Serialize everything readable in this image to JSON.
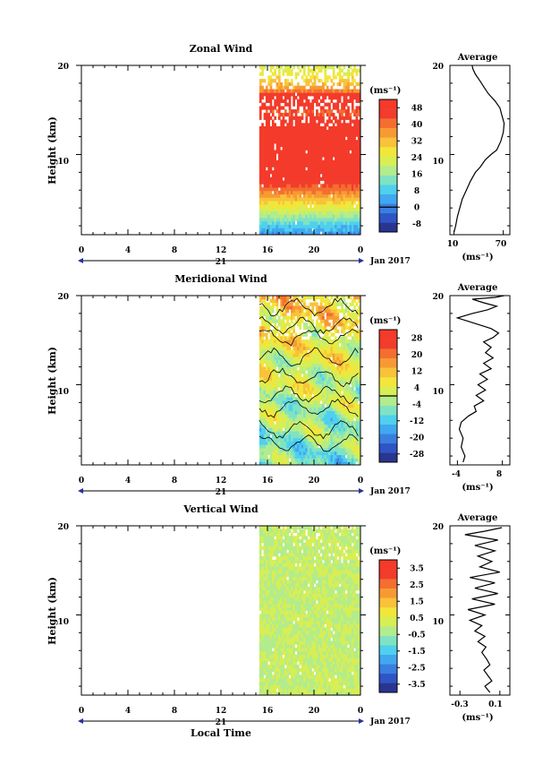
{
  "time_axis": {
    "hour_ticks": [
      "0",
      "4",
      "8",
      "12",
      "16",
      "20",
      "0"
    ],
    "day_label": "21",
    "month_label": "Jan 2017",
    "xlabel": "Local Time"
  },
  "chart_data": [
    {
      "type": "heatmap",
      "title": "Zonal Wind",
      "ylabel": "Height (km)",
      "ylim": [
        1,
        20
      ],
      "yticks": [
        "10",
        "20"
      ],
      "x_hour_range": [
        0,
        24
      ],
      "data_hour_range": [
        15.3,
        24
      ],
      "colorbar": {
        "unit": "(ms⁻¹)",
        "ticks": [
          "48",
          "40",
          "32",
          "24",
          "16",
          "8",
          "0",
          "-8"
        ],
        "range": [
          -12,
          52
        ],
        "colors": [
          "#2a3590",
          "#2f54c4",
          "#3a7ee0",
          "#41a8f0",
          "#4fd0ee",
          "#7fe3c2",
          "#b2ec8c",
          "#d7ee55",
          "#f2e63a",
          "#f8c23a",
          "#f79a34",
          "#f46e30",
          "#f23c2c",
          "#f43a2a"
        ],
        "contour_level": 0
      },
      "profile": {
        "title": "Average",
        "xticks": [
          "10",
          "70"
        ],
        "xlim": [
          5,
          78
        ],
        "xlabel": "(ms⁻¹)",
        "yticks": [
          "10",
          "20"
        ],
        "points": [
          [
            10,
            1.3
          ],
          [
            12,
            2.0
          ],
          [
            14,
            3.0
          ],
          [
            17,
            4.0
          ],
          [
            20,
            5.0
          ],
          [
            25,
            6.0
          ],
          [
            30,
            7.0
          ],
          [
            36,
            8.0
          ],
          [
            42,
            8.6
          ],
          [
            48,
            9.4
          ],
          [
            55,
            10.0
          ],
          [
            62,
            10.5
          ],
          [
            67,
            11.5
          ],
          [
            70,
            12.5
          ],
          [
            71,
            13.5
          ],
          [
            68,
            14.5
          ],
          [
            66,
            15.2
          ],
          [
            60,
            16.0
          ],
          [
            52,
            16.8
          ],
          [
            47,
            17.5
          ],
          [
            42,
            18.2
          ],
          [
            36,
            19.0
          ],
          [
            33,
            19.6
          ],
          [
            32,
            20.0
          ]
        ]
      }
    },
    {
      "type": "heatmap",
      "title": "Meridional Wind",
      "ylabel": "Height (km)",
      "ylim": [
        1,
        20
      ],
      "yticks": [
        "10",
        "20"
      ],
      "x_hour_range": [
        0,
        24
      ],
      "data_hour_range": [
        15.3,
        24
      ],
      "colorbar": {
        "unit": "(ms⁻¹)",
        "ticks": [
          "28",
          "20",
          "12",
          "4",
          "-4",
          "-12",
          "-20",
          "-28"
        ],
        "range": [
          -32,
          32
        ],
        "colors": [
          "#2a3590",
          "#2f54c4",
          "#3a7ee0",
          "#41a8f0",
          "#4fd0ee",
          "#7fe3c2",
          "#b2ec8c",
          "#d7ee55",
          "#f2e63a",
          "#f8c23a",
          "#f79a34",
          "#f46e30",
          "#f23c2c",
          "#f43a2a"
        ],
        "contour_level": 0
      },
      "profile": {
        "title": "Average",
        "xticks": [
          "-4",
          "8"
        ],
        "xlim": [
          -6,
          10
        ],
        "xlabel": "(ms⁻¹)",
        "yticks": [
          "10",
          "20"
        ],
        "points": [
          [
            -2.5,
            1.3
          ],
          [
            -2.0,
            2.0
          ],
          [
            -3.0,
            3.0
          ],
          [
            -2.5,
            4.0
          ],
          [
            -3.5,
            5.0
          ],
          [
            -3.0,
            5.8
          ],
          [
            -1.0,
            6.5
          ],
          [
            1.0,
            7.0
          ],
          [
            0.5,
            7.6
          ],
          [
            3.0,
            8.2
          ],
          [
            1.0,
            8.8
          ],
          [
            3.5,
            9.4
          ],
          [
            1.5,
            10.0
          ],
          [
            4.0,
            10.6
          ],
          [
            2.0,
            11.2
          ],
          [
            5.0,
            11.8
          ],
          [
            3.0,
            12.4
          ],
          [
            5.5,
            13.0
          ],
          [
            3.5,
            13.6
          ],
          [
            5.0,
            14.2
          ],
          [
            3.0,
            14.8
          ],
          [
            5.5,
            15.3
          ],
          [
            7.0,
            15.8
          ],
          [
            5.0,
            16.3
          ],
          [
            2.0,
            16.7
          ],
          [
            -1.0,
            17.1
          ],
          [
            -4.0,
            17.5
          ],
          [
            0.0,
            18.0
          ],
          [
            4.0,
            18.4
          ],
          [
            6.5,
            18.8
          ],
          [
            3.0,
            19.2
          ],
          [
            0.0,
            19.6
          ],
          [
            6.0,
            19.8
          ],
          [
            8.5,
            20.0
          ]
        ]
      }
    },
    {
      "type": "heatmap",
      "title": "Vertical Wind",
      "ylabel": "Height (km)",
      "ylim": [
        1,
        20
      ],
      "yticks": [
        "10",
        "20"
      ],
      "x_hour_range": [
        0,
        24
      ],
      "data_hour_range": [
        15.3,
        24
      ],
      "colorbar": {
        "unit": "(ms⁻¹)",
        "ticks": [
          "3.5",
          "2.5",
          "1.5",
          "0.5",
          "-0.5",
          "-1.5",
          "-2.5",
          "-3.5"
        ],
        "range": [
          -4,
          4
        ],
        "colors": [
          "#2a3590",
          "#2f54c4",
          "#3a7ee0",
          "#41a8f0",
          "#4fd0ee",
          "#7fe3c2",
          "#b2ec8c",
          "#d7ee55",
          "#f2e63a",
          "#f8c23a",
          "#f79a34",
          "#f46e30",
          "#f23c2c",
          "#f43a2a"
        ],
        "contour_level": null
      },
      "profile": {
        "title": "Average",
        "xticks": [
          "-0.3",
          "0.1"
        ],
        "xlim": [
          -0.4,
          0.2
        ],
        "xlabel": "(ms⁻¹)",
        "yticks": [
          "10",
          "20"
        ],
        "points": [
          [
            0.0,
            1.3
          ],
          [
            -0.05,
            2.0
          ],
          [
            0.02,
            2.6
          ],
          [
            -0.02,
            3.2
          ],
          [
            -0.06,
            3.8
          ],
          [
            0.0,
            4.4
          ],
          [
            -0.03,
            5.0
          ],
          [
            -0.08,
            5.8
          ],
          [
            -0.04,
            6.4
          ],
          [
            -0.12,
            7.0
          ],
          [
            -0.05,
            7.6
          ],
          [
            -0.15,
            8.2
          ],
          [
            -0.08,
            8.8
          ],
          [
            -0.2,
            9.4
          ],
          [
            -0.05,
            10.0
          ],
          [
            -0.22,
            10.6
          ],
          [
            0.05,
            11.2
          ],
          [
            -0.18,
            11.8
          ],
          [
            0.08,
            12.4
          ],
          [
            -0.15,
            13.0
          ],
          [
            0.05,
            13.6
          ],
          [
            -0.2,
            14.2
          ],
          [
            0.1,
            14.8
          ],
          [
            -0.1,
            15.4
          ],
          [
            0.02,
            16.0
          ],
          [
            -0.12,
            16.6
          ],
          [
            0.05,
            17.2
          ],
          [
            -0.15,
            17.8
          ],
          [
            0.08,
            18.4
          ],
          [
            -0.25,
            19.0
          ],
          [
            -0.05,
            19.4
          ],
          [
            0.12,
            19.8
          ]
        ]
      }
    }
  ]
}
